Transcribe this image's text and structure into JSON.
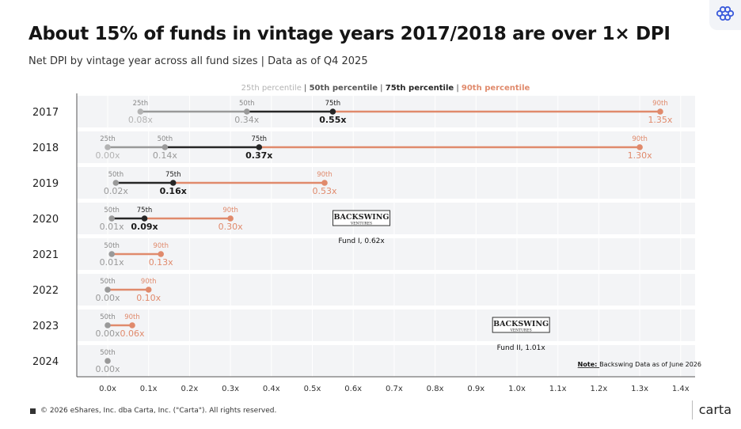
{
  "title": "About 15% of funds in vintage years 2017/2018 are over 1× DPI",
  "subtitle": "Net DPI by vintage year across all fund sizes | Data as of Q4 2025",
  "footer": "© 2026 eShares, Inc. dba Carta, Inc. (\"Carta\"). All rights reserved.",
  "brand": "carta",
  "corner_icon": "flower-icon",
  "colors": {
    "p25": "#b3b3b3",
    "p50": "#999999",
    "p75": "#262626",
    "p90": "#e08a6c",
    "band": "#f3f4f6"
  },
  "chart_data": {
    "type": "dot-range",
    "title": "About 15% of funds in vintage years 2017/2018 are over 1× DPI",
    "subtitle": "Net DPI by vintage year across all fund sizes | Data as of Q4 2025",
    "legend": [
      "25th percentile",
      "50th percentile",
      "75th percentile",
      "90th percentile"
    ],
    "legend_placement": "top-center",
    "xlim": [
      0,
      1.4
    ],
    "x_ticks": [
      "0.0x",
      "0.1x",
      "0.2x",
      "0.3x",
      "0.4x",
      "0.5x",
      "0.6x",
      "0.7x",
      "0.8x",
      "0.9x",
      "1.0x",
      "1.1x",
      "1.2x",
      "1.3x",
      "1.4x"
    ],
    "x_tick_values": [
      0,
      0.1,
      0.2,
      0.3,
      0.4,
      0.5,
      0.6,
      0.7,
      0.8,
      0.9,
      1.0,
      1.1,
      1.2,
      1.3,
      1.4
    ],
    "rows": [
      {
        "year": "2017",
        "points": [
          {
            "pct": "25th",
            "value": 0.08,
            "label": "0.08x"
          },
          {
            "pct": "50th",
            "value": 0.34,
            "label": "0.34x"
          },
          {
            "pct": "75th",
            "value": 0.55,
            "label": "0.55x"
          },
          {
            "pct": "90th",
            "value": 1.35,
            "label": "1.35x"
          }
        ]
      },
      {
        "year": "2018",
        "points": [
          {
            "pct": "25th",
            "value": 0.0,
            "label": "0.00x"
          },
          {
            "pct": "50th",
            "value": 0.14,
            "label": "0.14x"
          },
          {
            "pct": "75th",
            "value": 0.37,
            "label": "0.37x"
          },
          {
            "pct": "90th",
            "value": 1.3,
            "label": "1.30x"
          }
        ]
      },
      {
        "year": "2019",
        "points": [
          {
            "pct": "50th",
            "value": 0.02,
            "label": "0.02x"
          },
          {
            "pct": "75th",
            "value": 0.16,
            "label": "0.16x"
          },
          {
            "pct": "90th",
            "value": 0.53,
            "label": "0.53x"
          }
        ]
      },
      {
        "year": "2020",
        "points": [
          {
            "pct": "50th",
            "value": 0.01,
            "label": "0.01x"
          },
          {
            "pct": "75th",
            "value": 0.09,
            "label": "0.09x"
          },
          {
            "pct": "90th",
            "value": 0.3,
            "label": "0.30x"
          }
        ]
      },
      {
        "year": "2021",
        "points": [
          {
            "pct": "50th",
            "value": 0.01,
            "label": "0.01x"
          },
          {
            "pct": "90th",
            "value": 0.13,
            "label": "0.13x"
          }
        ]
      },
      {
        "year": "2022",
        "points": [
          {
            "pct": "50th",
            "value": 0.0,
            "label": "0.00x"
          },
          {
            "pct": "90th",
            "value": 0.1,
            "label": "0.10x"
          }
        ]
      },
      {
        "year": "2023",
        "points": [
          {
            "pct": "50th",
            "value": 0.0,
            "label": "0.00x"
          },
          {
            "pct": "90th",
            "value": 0.06,
            "label": "0.06x"
          }
        ]
      },
      {
        "year": "2024",
        "points": [
          {
            "pct": "50th",
            "value": 0.0,
            "label": "0.00x"
          }
        ]
      }
    ],
    "annotations": [
      {
        "row": "2020",
        "x": 0.62,
        "logo_line1": "BACKSWING",
        "logo_line2": "VENTURES",
        "label": "Fund I, 0.62x"
      },
      {
        "row": "2023",
        "x": 1.01,
        "logo_line1": "BACKSWING",
        "logo_line2": "VENTURES",
        "label": "Fund II, 1.01x"
      }
    ],
    "note_prefix": "Note:",
    "note_text": "Backswing Data as of June 2026"
  }
}
